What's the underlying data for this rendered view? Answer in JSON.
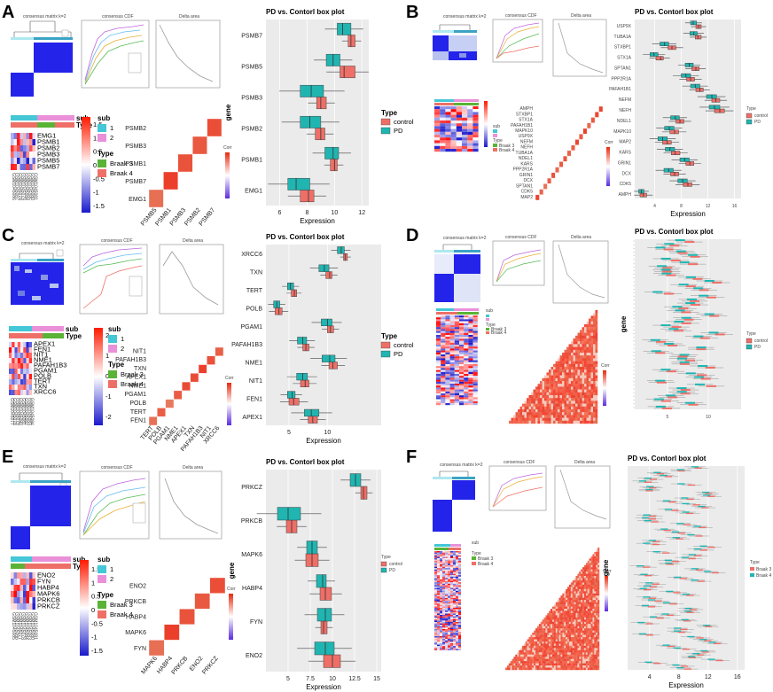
{
  "colors": {
    "control": "#ee6f67",
    "pd": "#20b5b1",
    "braak3": "#5ab336",
    "braak4": "#ee6f67",
    "sub1": "#44c7d6",
    "sub2": "#ea90d8",
    "cluster_blue": "#2323ea",
    "cluster_light": "#dfe4f7",
    "corr_red": "#ea3a25",
    "corr_light": "#f7b9a8"
  },
  "common": {
    "box_title": "PD vs. Contorl box plot",
    "gene_axis": "gene",
    "expression_axis": "Expression",
    "legend_type": "Type",
    "legend_control": "control",
    "legend_pd": "PD",
    "legend_sub": "sub",
    "sub1": "1",
    "sub2": "2",
    "braak3": "Braak 3",
    "braak4": "Braak 4",
    "corr": "Corr",
    "consensus_cdf": "consensus CDF",
    "delta_area": "Delta area",
    "tree_label": "consensus matrix k=2"
  },
  "panels": {
    "A": {
      "label": "A",
      "heatmap_genes": [
        "EMG1",
        "PSMB1",
        "PSMB2",
        "PSMB3",
        "PSMB5",
        "PSMB7"
      ],
      "heatmap_scale": [
        "1.5",
        "1",
        "0.5",
        "0",
        "-0.5",
        "-1",
        "-1.5"
      ],
      "corr_genes": [
        "PSMB2",
        "PSMB3",
        "PSMB1",
        "PSMB7",
        "EMG1"
      ],
      "corr_bottom": [
        "PSMB5",
        "PSMB1",
        "PSMB3",
        "PSMB2",
        "PSMB7"
      ],
      "samples": [
        "GSM1045086",
        "GSM1045087",
        "GSM1045078",
        "GSM1045079",
        "GSM1045084",
        "GSM1045085",
        "GSM1045080",
        "GSM1045081"
      ]
    },
    "B": {
      "label": "B",
      "corr_genes": [
        "AMPH",
        "STXBP1",
        "STX1A",
        "PAFAH1B1",
        "MAPK10",
        "USP9X",
        "NEFM",
        "NEFH",
        "TUBA1A",
        "NDEL1",
        "KARS",
        "PPP2R1A",
        "GRIN1",
        "DCX",
        "SPTAN1",
        "CDK5",
        "MAP2"
      ]
    },
    "C": {
      "label": "C",
      "heatmap_genes": [
        "APEX1",
        "FEN1",
        "NIT1",
        "NME1",
        "PAFAH1B3",
        "PGAM1",
        "POLB",
        "TERT",
        "TXN",
        "XRCC6"
      ],
      "heatmap_scale": [
        "2",
        "1",
        "0",
        "-1",
        "-2"
      ],
      "corr_genes": [
        "NIT1",
        "PAFAH1B3",
        "TXN",
        "APEX1",
        "NME1",
        "PGAM1",
        "POLB",
        "TERT",
        "FEN1"
      ],
      "corr_bottom": [
        "TERT",
        "POLB",
        "PGAM1",
        "NME1",
        "APEX1",
        "TXN",
        "PAFAH1B3",
        "NIT1",
        "XRCC6"
      ],
      "samples": [
        "GSM1045077",
        "GSM1045078",
        "GSM1045079",
        "GSM1045080",
        "GSM1045081",
        "GSM1045082",
        "GSM1045083",
        "GSM1045084"
      ]
    },
    "D": {
      "label": "D"
    },
    "E": {
      "label": "E",
      "heatmap_genes": [
        "ENO2",
        "FYN",
        "HABP4",
        "MAPK6",
        "PRKCB",
        "PRKCZ"
      ],
      "heatmap_scale": [
        "1.5",
        "1",
        "0.5",
        "0",
        "-0.5",
        "-1",
        "-1.5"
      ],
      "corr_genes": [
        "ENO2",
        "PRKCB",
        "HABP4",
        "MAPK6",
        "FYN"
      ],
      "corr_bottom": [
        "MAPK6",
        "HABP4",
        "PRKCB",
        "ENO2",
        "PRKCZ"
      ],
      "samples": [
        "GSM1045085",
        "GSM1045086",
        "GSM1045077",
        "GSM1045078",
        "GSM1045084",
        "GSM1045083",
        "GSM1045080",
        "GSM1045081"
      ]
    },
    "F": {
      "label": "F",
      "type_entries": [
        "Braak 3",
        "Braak 4"
      ],
      "legend_type_entries": [
        "Braak 3",
        "Braak 4"
      ]
    }
  },
  "chart_data": [
    {
      "panel": "A",
      "type": "box",
      "title": "PD vs. Contorl box plot",
      "xlabel": "Expression",
      "ylabel": "gene",
      "xlim": [
        5,
        12.5
      ],
      "xticks": [
        6,
        8,
        10,
        12
      ],
      "categories": [
        "PSMB7",
        "PSMB5",
        "PSMB3",
        "PSMB2",
        "PSMB1",
        "EMG1"
      ],
      "series": [
        {
          "name": "control",
          "q": [
            [
              11.0,
              11.2,
              11.5
            ],
            [
              10.4,
              10.7,
              11.5
            ],
            [
              8.7,
              9.0,
              9.4
            ],
            [
              8.6,
              9.0,
              9.3
            ],
            [
              9.7,
              10.0,
              10.2
            ],
            [
              7.5,
              8.1,
              8.5
            ]
          ]
        },
        {
          "name": "PD",
          "q": [
            [
              10.2,
              10.6,
              11.2
            ],
            [
              9.4,
              9.9,
              10.4
            ],
            [
              7.5,
              8.3,
              9.2
            ],
            [
              7.5,
              8.2,
              9.0
            ],
            [
              9.3,
              9.9,
              10.3
            ],
            [
              6.6,
              7.2,
              8.2
            ]
          ]
        }
      ]
    },
    {
      "panel": "B",
      "type": "box",
      "title": "PD vs. Contorl box plot",
      "xlabel": "Expression",
      "ylabel": "",
      "xlim": [
        1,
        17
      ],
      "xticks": [
        4,
        8,
        12,
        16
      ],
      "categories": [
        "USP9X",
        "TUBA1A",
        "STXBP1",
        "STX1A",
        "SPTAN1",
        "PPP2R1A",
        "PAFAH1B1",
        "NEFM",
        "NEFH",
        "NDEL1",
        "MAPK10",
        "MAP2",
        "KARS",
        "GRIN1",
        "DCX",
        "CDK5",
        "AMPH"
      ],
      "series": [
        {
          "name": "control",
          "q": [
            [
              10.2,
              10.6,
              11
            ],
            [
              10.1,
              10.5,
              11
            ],
            [
              6,
              6.6,
              7.2
            ],
            [
              4.2,
              4.9,
              5.3
            ],
            [
              9.6,
              10.2,
              10.7
            ],
            [
              8.8,
              9.4,
              10
            ],
            [
              10.2,
              10.8,
              11.3
            ],
            [
              12.6,
              13.2,
              13.8
            ],
            [
              13,
              13.8,
              14.5
            ],
            [
              7.2,
              7.8,
              8.4
            ],
            [
              6.3,
              7,
              7.6
            ],
            [
              5.2,
              5.9,
              6.5
            ],
            [
              6.5,
              7.1,
              7.8
            ],
            [
              8.7,
              9.3,
              9.9
            ],
            [
              6.4,
              7,
              7.6
            ],
            [
              8.3,
              9,
              9.6
            ],
            [
              1.8,
              2.3,
              2.8
            ]
          ]
        },
        {
          "name": "PD",
          "q": [
            [
              9.4,
              9.8,
              10.3
            ],
            [
              9.3,
              9.9,
              10.4
            ],
            [
              4.8,
              5.5,
              6.1
            ],
            [
              3.3,
              3.9,
              4.5
            ],
            [
              8.6,
              9.2,
              9.8
            ],
            [
              8,
              8.7,
              9.4
            ],
            [
              9.4,
              10.1,
              10.8
            ],
            [
              11.8,
              12.6,
              13.3
            ],
            [
              12.2,
              13,
              13.8
            ],
            [
              6.4,
              7.1,
              7.7
            ],
            [
              5.5,
              6.2,
              6.9
            ],
            [
              4.5,
              5.2,
              5.9
            ],
            [
              5.6,
              6.3,
              7
            ],
            [
              7.8,
              8.5,
              9.2
            ],
            [
              5.4,
              6.1,
              6.8
            ],
            [
              7.5,
              8.2,
              8.9
            ],
            [
              1.6,
              2,
              2.4
            ]
          ]
        }
      ]
    },
    {
      "panel": "C",
      "type": "box",
      "title": "PD vs. Contorl box plot",
      "xlabel": "Expression",
      "ylabel": "",
      "xlim": [
        2,
        17
      ],
      "xticks": [
        5,
        10
      ],
      "categories": [
        "XRCC6",
        "TXN",
        "TERT",
        "POLB",
        "PGAM1",
        "PAFAH1B3",
        "NME1",
        "NIT1",
        "FEN1",
        "APEX1"
      ],
      "series": [
        {
          "name": "control",
          "q": [
            [
              12.1,
              12.3,
              12.6
            ],
            [
              9.8,
              10.3,
              10.6
            ],
            [
              5.3,
              5.7,
              6.0
            ],
            [
              3.2,
              3.7,
              4.1
            ],
            [
              10.0,
              10.4,
              10.8
            ],
            [
              6.8,
              7.2,
              7.6
            ],
            [
              10.2,
              10.7,
              11.3
            ],
            [
              6.5,
              7.1,
              7.6
            ],
            [
              5.0,
              5.6,
              6.3
            ],
            [
              7.5,
              8.1,
              8.7
            ]
          ]
        },
        {
          "name": "PD",
          "q": [
            [
              11.3,
              11.8,
              12.2
            ],
            [
              8.9,
              9.6,
              10.2
            ],
            [
              4.8,
              5.2,
              5.6
            ],
            [
              3.0,
              3.4,
              3.8
            ],
            [
              9.2,
              10.0,
              10.6
            ],
            [
              6.1,
              6.8,
              7.3
            ],
            [
              9.3,
              10.3,
              11.0
            ],
            [
              6.0,
              6.8,
              7.4
            ],
            [
              4.8,
              5.4,
              5.8
            ],
            [
              7.0,
              7.9,
              8.9
            ]
          ]
        }
      ]
    },
    {
      "panel": "D",
      "type": "box",
      "title": "PD vs. Contorl box plot",
      "xlabel": "",
      "ylabel": "gene",
      "xlim": [
        1,
        14
      ],
      "xticks": [
        5,
        10
      ],
      "categories": [],
      "series": []
    },
    {
      "panel": "E",
      "type": "box",
      "title": "PD vs. Contorl box plot",
      "xlabel": "Expression",
      "ylabel": "gene",
      "xlim": [
        2.5,
        15.5
      ],
      "xticks": [
        5.0,
        7.5,
        10.0,
        12.5,
        15.0
      ],
      "categories": [
        "PRKCZ",
        "PRKCB",
        "MAPK6",
        "HABP4",
        "FYN",
        "ENO2"
      ],
      "series": [
        {
          "name": "control",
          "q": [
            [
              13.2,
              13.5,
              13.9
            ],
            [
              4.8,
              5.4,
              6.0
            ],
            [
              7.0,
              7.7,
              8.4
            ],
            [
              8.6,
              9.2,
              9.9
            ],
            [
              8.7,
              9.0,
              9.4
            ],
            [
              9.0,
              10.0,
              10.9
            ]
          ]
        },
        {
          "name": "PD",
          "q": [
            [
              12.0,
              12.6,
              13.2
            ],
            [
              3.8,
              5.0,
              6.4
            ],
            [
              7.1,
              7.7,
              8.3
            ],
            [
              8.2,
              8.9,
              9.3
            ],
            [
              8.3,
              9.2,
              9.9
            ],
            [
              8.0,
              9.2,
              10.2
            ]
          ]
        }
      ]
    },
    {
      "panel": "F",
      "type": "box",
      "title": "PD vs. Contorl box plot",
      "xlabel": "Expression",
      "ylabel": "gene",
      "xlim": [
        1,
        17
      ],
      "xticks": [
        4,
        8,
        12,
        16
      ],
      "categories": [],
      "series": []
    }
  ]
}
